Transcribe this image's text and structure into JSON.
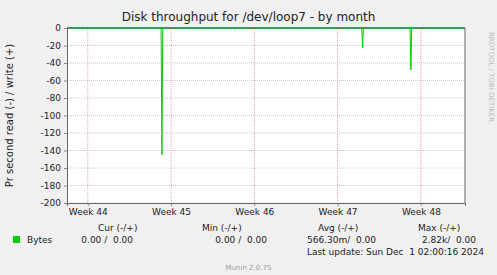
{
  "chart_data": {
    "type": "line",
    "title": "Disk throughput for /dev/loop7 - by month",
    "y_label": "Pr second read (-) / write (+)",
    "x": [
      43.75,
      44.88,
      44.89,
      44.9,
      47.29,
      47.3,
      47.31,
      47.87,
      47.88,
      47.89,
      48.53
    ],
    "xlim": [
      43.75,
      48.53
    ],
    "xticks": [
      {
        "value": 44,
        "label": "Week 44"
      },
      {
        "value": 45,
        "label": "Week 45"
      },
      {
        "value": 46,
        "label": "Week 46"
      },
      {
        "value": 47,
        "label": "Week 47"
      },
      {
        "value": 48,
        "label": "Week 48"
      }
    ],
    "ylim": [
      -200,
      0
    ],
    "yticks": [
      0,
      -20,
      -40,
      -60,
      -80,
      -100,
      -120,
      -140,
      -160,
      -180,
      -200
    ],
    "grid": true,
    "series": [
      {
        "name": "Bytes",
        "color": "#00cc00",
        "values": [
          0,
          0,
          -145,
          0,
          0,
          -23,
          0,
          0,
          -48,
          0,
          0
        ],
        "stats": [
          "0.00 /  0.00",
          "0.00 /  0.00",
          "566.30m/  0.00",
          "2.82k/  0.00"
        ]
      }
    ],
    "stats_headers": [
      "Cur (-/+)",
      "Min (-/+)",
      "Avg (-/+)",
      "Max (-/+)"
    ],
    "footer": "Last update: Sun Dec  1 02:00:16 2024",
    "credit": "Munin 2.0.75",
    "watermark": "RRDTOOL / TOBI OETIKER"
  }
}
